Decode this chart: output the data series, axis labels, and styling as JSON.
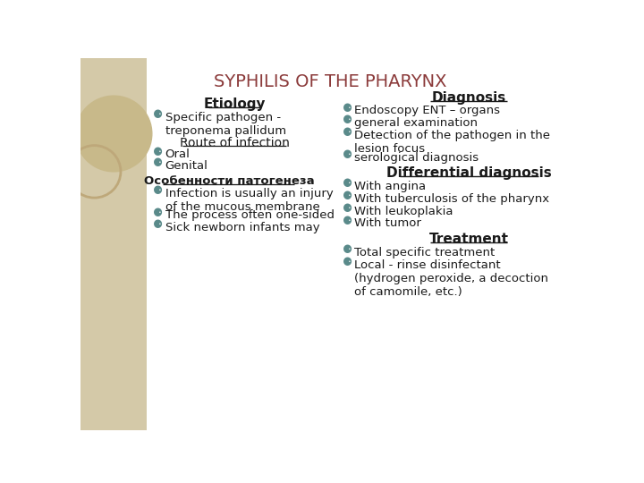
{
  "title": "SYPHILIS OF THE PHARYNX",
  "title_color": "#8B3A3A",
  "title_fontsize": 14,
  "background_color": "#FFFFFF",
  "left_panel_bg": "#D4C9A8",
  "text_color": "#1a1a1a",
  "left_col": {
    "heading1": "Etiology",
    "items1": [
      "Specific pathogen -\ntreponema pallidum"
    ],
    "heading2": "Route of infection",
    "items2": [
      "Oral",
      "Genital"
    ],
    "heading3": "Особенности патогенеза",
    "items3": [
      "Infection is usually an injury\nof the mucous membrane",
      "The process often one-sided",
      "Sick newborn infants may"
    ]
  },
  "right_col": {
    "heading1": "Diagnosis",
    "items1": [
      "Endoscopy ENT – organs",
      "general examination",
      "Detection of the pathogen in the\nlesion focus",
      "serological diagnosis"
    ],
    "heading2": "Differential diagnosis",
    "items2": [
      "With angina",
      "With tuberculosis of the pharynx",
      "With leukoplakia",
      "With tumor"
    ],
    "heading3": "Treatment",
    "items3": [
      "Total specific treatment",
      "Local - rinse disinfectant\n(hydrogen peroxide, a decoction\nof camomile, etc.)"
    ]
  }
}
